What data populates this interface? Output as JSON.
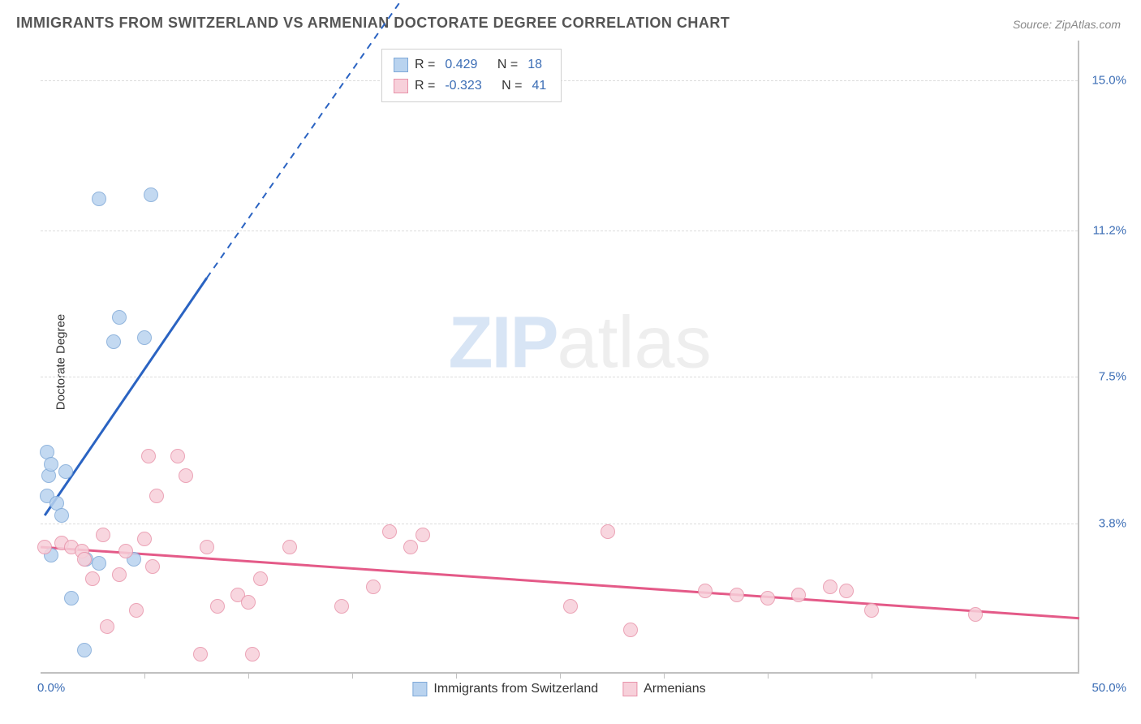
{
  "title": "IMMIGRANTS FROM SWITZERLAND VS ARMENIAN DOCTORATE DEGREE CORRELATION CHART",
  "source_label": "Source: ",
  "source_name": "ZipAtlas.com",
  "ylabel": "Doctorate Degree",
  "watermark_zip": "ZIP",
  "watermark_atlas": "atlas",
  "chart": {
    "type": "scatter",
    "background_color": "#ffffff",
    "grid_color": "#dcdcdc",
    "axis_color": "#c0c0c0",
    "xlim": [
      0,
      50
    ],
    "ylim": [
      0,
      16
    ],
    "y_gridlines": [
      3.8,
      7.5,
      11.2,
      15.0
    ],
    "y_labels": [
      "3.8%",
      "7.5%",
      "11.2%",
      "15.0%"
    ],
    "xticks": [
      5,
      10,
      15,
      20,
      25,
      30,
      35,
      40,
      45
    ],
    "x_min_label": "0.0%",
    "x_max_label": "50.0%",
    "series": [
      {
        "name": "Immigrants from Switzerland",
        "label": "Immigrants from Switzerland",
        "fill_color": "#b9d3ef",
        "stroke_color": "#7fa9d8",
        "line_color": "#2a63c2",
        "marker_radius": 9,
        "r_label": "R =",
        "r_value": "0.429",
        "n_label": "N =",
        "n_value": "18",
        "trend": {
          "x1": 0.2,
          "y1": 4.0,
          "x2": 8.0,
          "y2": 10.0,
          "x2_dash": 18.0,
          "y2_dash": 17.5
        },
        "points": [
          {
            "x": 0.3,
            "y": 5.6
          },
          {
            "x": 0.4,
            "y": 5.0
          },
          {
            "x": 0.5,
            "y": 5.3
          },
          {
            "x": 1.2,
            "y": 5.1
          },
          {
            "x": 0.3,
            "y": 4.5
          },
          {
            "x": 0.8,
            "y": 4.3
          },
          {
            "x": 1.0,
            "y": 4.0
          },
          {
            "x": 0.5,
            "y": 3.0
          },
          {
            "x": 2.2,
            "y": 2.9
          },
          {
            "x": 4.5,
            "y": 2.9
          },
          {
            "x": 2.8,
            "y": 2.8
          },
          {
            "x": 1.5,
            "y": 1.9
          },
          {
            "x": 2.1,
            "y": 0.6
          },
          {
            "x": 5.0,
            "y": 8.5
          },
          {
            "x": 3.5,
            "y": 8.4
          },
          {
            "x": 2.8,
            "y": 12.0
          },
          {
            "x": 5.3,
            "y": 12.1
          },
          {
            "x": 3.8,
            "y": 9.0
          }
        ]
      },
      {
        "name": "Armenians",
        "label": "Armenians",
        "fill_color": "#f7d0da",
        "stroke_color": "#e893aa",
        "line_color": "#e45a88",
        "marker_radius": 9,
        "r_label": "R =",
        "r_value": "-0.323",
        "n_label": "N =",
        "n_value": "41",
        "trend": {
          "x1": 0,
          "y1": 3.2,
          "x2": 50,
          "y2": 1.4
        },
        "points": [
          {
            "x": 0.2,
            "y": 3.2
          },
          {
            "x": 1.0,
            "y": 3.3
          },
          {
            "x": 1.5,
            "y": 3.2
          },
          {
            "x": 2.0,
            "y": 3.1
          },
          {
            "x": 2.1,
            "y": 2.9
          },
          {
            "x": 2.5,
            "y": 2.4
          },
          {
            "x": 3.0,
            "y": 3.5
          },
          {
            "x": 3.2,
            "y": 1.2
          },
          {
            "x": 3.8,
            "y": 2.5
          },
          {
            "x": 4.1,
            "y": 3.1
          },
          {
            "x": 4.6,
            "y": 1.6
          },
          {
            "x": 5.0,
            "y": 3.4
          },
          {
            "x": 5.2,
            "y": 5.5
          },
          {
            "x": 5.4,
            "y": 2.7
          },
          {
            "x": 5.6,
            "y": 4.5
          },
          {
            "x": 6.6,
            "y": 5.5
          },
          {
            "x": 7.0,
            "y": 5.0
          },
          {
            "x": 7.7,
            "y": 0.5
          },
          {
            "x": 8.0,
            "y": 3.2
          },
          {
            "x": 8.5,
            "y": 1.7
          },
          {
            "x": 9.5,
            "y": 2.0
          },
          {
            "x": 10.0,
            "y": 1.8
          },
          {
            "x": 10.2,
            "y": 0.5
          },
          {
            "x": 10.6,
            "y": 2.4
          },
          {
            "x": 12.0,
            "y": 3.2
          },
          {
            "x": 14.5,
            "y": 1.7
          },
          {
            "x": 16.0,
            "y": 2.2
          },
          {
            "x": 16.8,
            "y": 3.6
          },
          {
            "x": 17.8,
            "y": 3.2
          },
          {
            "x": 18.4,
            "y": 3.5
          },
          {
            "x": 25.5,
            "y": 1.7
          },
          {
            "x": 27.3,
            "y": 3.6
          },
          {
            "x": 28.4,
            "y": 1.1
          },
          {
            "x": 32.0,
            "y": 2.1
          },
          {
            "x": 33.5,
            "y": 2.0
          },
          {
            "x": 35.0,
            "y": 1.9
          },
          {
            "x": 36.5,
            "y": 2.0
          },
          {
            "x": 38.0,
            "y": 2.2
          },
          {
            "x": 38.8,
            "y": 2.1
          },
          {
            "x": 40.0,
            "y": 1.6
          },
          {
            "x": 45.0,
            "y": 1.5
          }
        ]
      }
    ]
  }
}
